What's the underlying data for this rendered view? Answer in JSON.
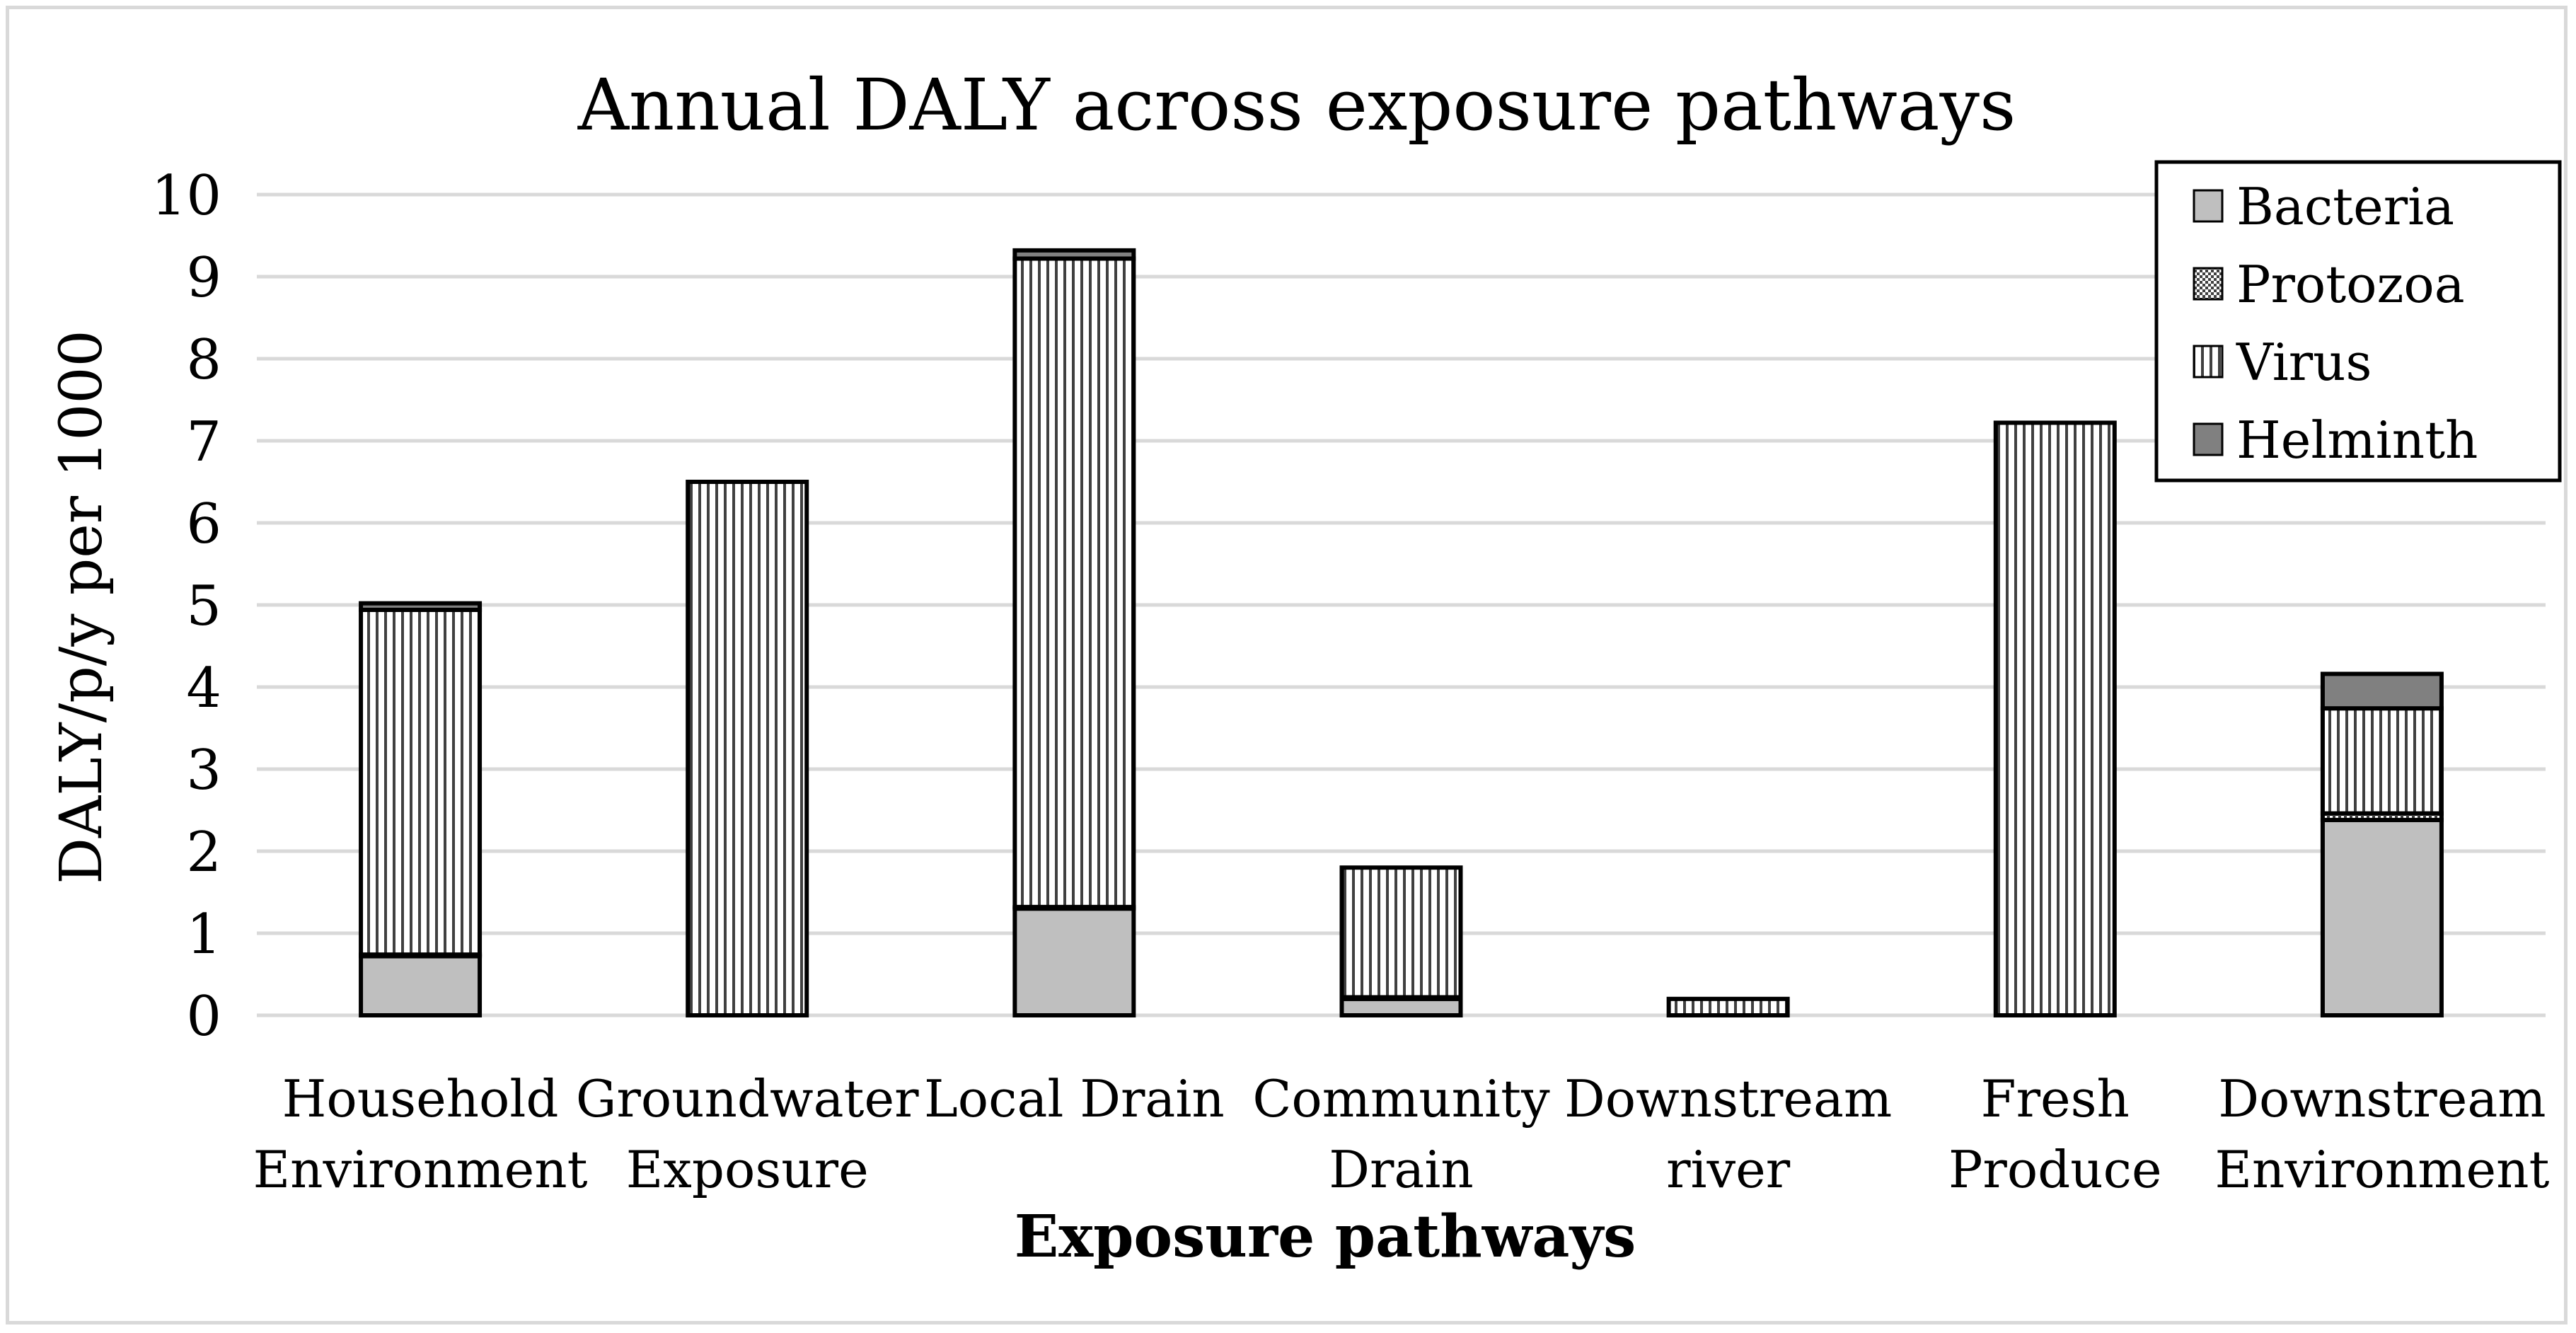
{
  "chart_data": {
    "type": "bar",
    "stacked": true,
    "title": "Annual DALY across exposure pathways",
    "xlabel": "Exposure pathways",
    "ylabel": "DALY/p/y  per 1000",
    "ylim": [
      0,
      10
    ],
    "yticks": [
      0,
      1,
      2,
      3,
      4,
      5,
      6,
      7,
      8,
      9,
      10
    ],
    "grid": true,
    "legend_position": "top-right",
    "categories": [
      [
        "Household",
        "Environment"
      ],
      [
        "Groundwater",
        "Exposure"
      ],
      [
        "Local Drain"
      ],
      [
        "Community",
        "Drain"
      ],
      [
        "Downstream",
        "river"
      ],
      [
        "Fresh",
        "Produce"
      ],
      [
        "Downstream",
        "Environment"
      ]
    ],
    "series": [
      {
        "name": "Bacteria",
        "pattern": "solid-light",
        "color": "#bfbfbf",
        "values": [
          0.72,
          0,
          1.3,
          0.2,
          0,
          0,
          2.38
        ]
      },
      {
        "name": "Protozoa",
        "pattern": "checker",
        "color": "#ffffff",
        "values": [
          0.02,
          0,
          0.02,
          0.02,
          0,
          0,
          0.08
        ]
      },
      {
        "name": "Virus",
        "pattern": "vertical-lines",
        "color": "#ffffff",
        "values": [
          4.2,
          6.5,
          7.9,
          1.58,
          0.2,
          7.22,
          1.28
        ]
      },
      {
        "name": "Helminth",
        "pattern": "solid-dark",
        "color": "#808080",
        "values": [
          0.08,
          0,
          0.1,
          0,
          0,
          0,
          0.42
        ]
      }
    ]
  }
}
